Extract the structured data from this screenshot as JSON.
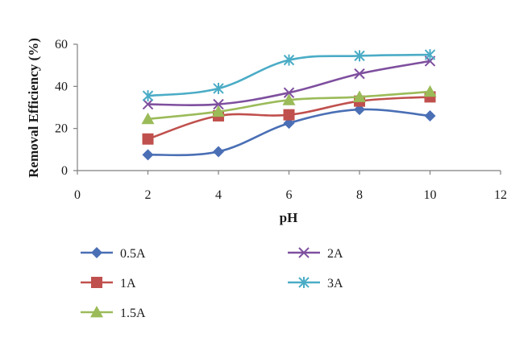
{
  "chart_data": {
    "type": "line",
    "xlabel": "pH",
    "ylabel": "Removal Efficiency (%)",
    "xlim": [
      0,
      12
    ],
    "ylim": [
      0,
      60
    ],
    "xticks": [
      0,
      2,
      4,
      6,
      8,
      10,
      12
    ],
    "yticks": [
      0,
      20,
      40,
      60
    ],
    "grid": false,
    "legend_position": "bottom",
    "x": [
      2,
      4,
      6,
      8,
      10
    ],
    "series": [
      {
        "name": "0.5A",
        "color": "#4a6fb5",
        "marker": "diamond",
        "values": [
          7.5,
          9,
          22.5,
          29,
          26
        ]
      },
      {
        "name": "1A",
        "color": "#c0504d",
        "marker": "square",
        "values": [
          15,
          26,
          26.5,
          33,
          35
        ]
      },
      {
        "name": "1.5A",
        "color": "#9bbb59",
        "marker": "triangle",
        "values": [
          24.5,
          28,
          33.5,
          35,
          37.5
        ]
      },
      {
        "name": "2A",
        "color": "#7e4f9e",
        "marker": "x",
        "values": [
          31.5,
          31.5,
          37,
          46,
          52
        ]
      },
      {
        "name": "3A",
        "color": "#4bacc6",
        "marker": "star",
        "values": [
          35.5,
          39,
          52.5,
          54.5,
          55
        ]
      }
    ]
  }
}
